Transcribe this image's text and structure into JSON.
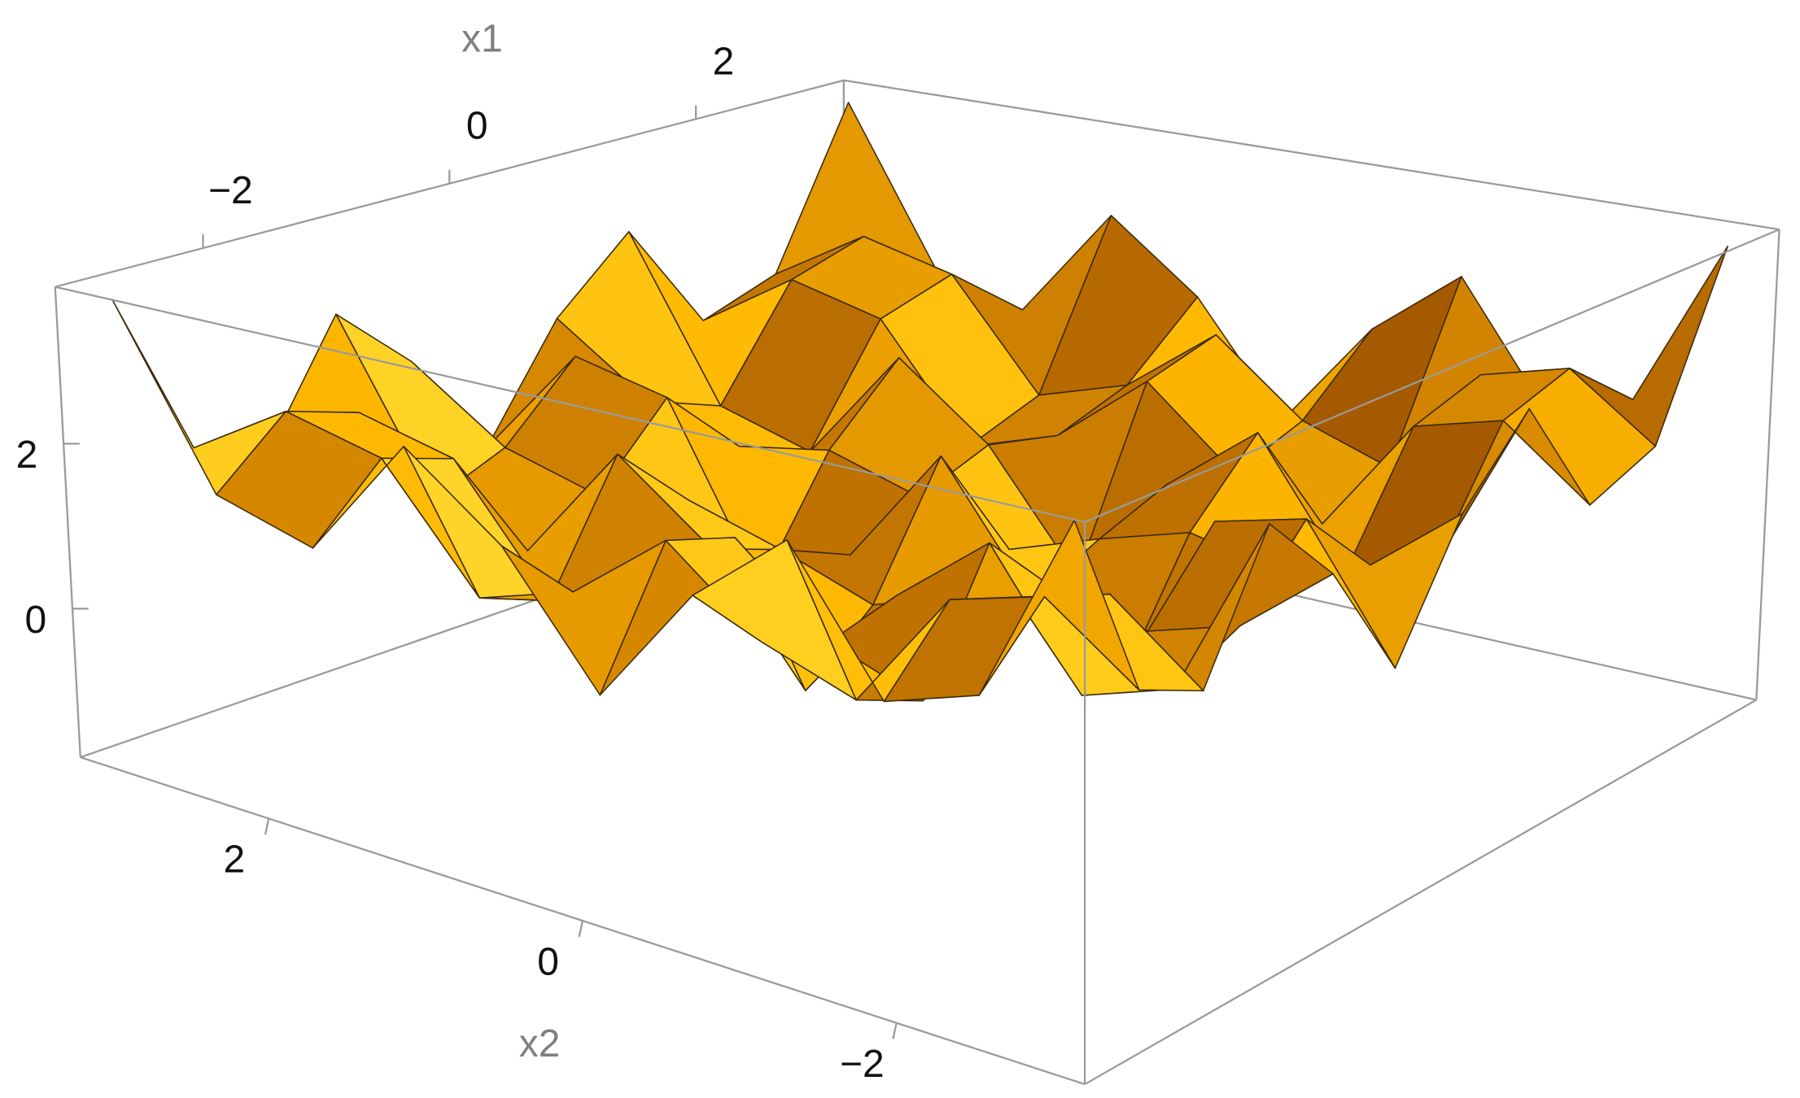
{
  "chart_data": {
    "type": "surface",
    "x_label": "x1",
    "y_label": "x2",
    "xlim": [
      -3.2,
      3.2
    ],
    "ylim": [
      -3.2,
      3.2
    ],
    "zlim": [
      -1.8,
      3.9
    ],
    "xticks": [
      {
        "value": -2,
        "label": "−2"
      },
      0,
      2
    ],
    "yticks": [
      2,
      0,
      {
        "value": -2,
        "label": "−2"
      }
    ],
    "zticks": [
      0,
      2
    ],
    "color": "#f5b400",
    "x1": [
      -3,
      -2.4,
      -1.8,
      -1.2,
      -0.6,
      0,
      0.6,
      1.2,
      1.8,
      2.4,
      3
    ],
    "x2": [
      -3,
      -2.4,
      -1.8,
      -1.2,
      -0.6,
      0,
      0.6,
      1.2,
      1.8,
      2.4,
      3
    ],
    "z": [
      [
        3.75,
        1.7,
        1.37,
        2.83,
        1.97,
        0.59,
        1.97,
        2.83,
        1.37,
        1.7,
        3.75
      ],
      [
        1.7,
        2.43,
        2.15,
        0.8,
        1.16,
        2.02,
        1.16,
        0.8,
        2.15,
        2.43,
        1.7
      ],
      [
        1.37,
        2.15,
        1.87,
        0.47,
        0.85,
        1.76,
        0.85,
        0.47,
        1.87,
        2.15,
        1.37
      ],
      [
        2.83,
        0.8,
        0.47,
        1.91,
        1.06,
        -0.31,
        1.06,
        1.91,
        0.47,
        0.8,
        2.83
      ],
      [
        1.97,
        1.16,
        0.85,
        1.06,
        0.74,
        0.36,
        0.74,
        1.06,
        0.85,
        1.16,
        1.97
      ],
      [
        0.59,
        2.02,
        1.76,
        -0.31,
        0.36,
        1.8,
        0.36,
        -0.31,
        1.76,
        2.02,
        0.59
      ],
      [
        1.97,
        1.16,
        0.85,
        1.06,
        0.74,
        0.36,
        0.74,
        1.06,
        0.85,
        1.16,
        1.97
      ],
      [
        2.83,
        0.8,
        0.47,
        1.91,
        1.06,
        -0.31,
        1.06,
        1.91,
        0.47,
        0.8,
        2.83
      ],
      [
        1.37,
        2.15,
        1.87,
        0.47,
        0.85,
        1.76,
        0.85,
        0.47,
        1.87,
        2.15,
        1.37
      ],
      [
        1.7,
        2.43,
        2.15,
        0.8,
        1.16,
        2.02,
        1.16,
        0.8,
        2.15,
        2.43,
        1.7
      ],
      [
        3.75,
        1.7,
        1.37,
        2.83,
        1.97,
        0.59,
        1.97,
        2.83,
        1.37,
        1.7,
        3.75
      ]
    ]
  }
}
